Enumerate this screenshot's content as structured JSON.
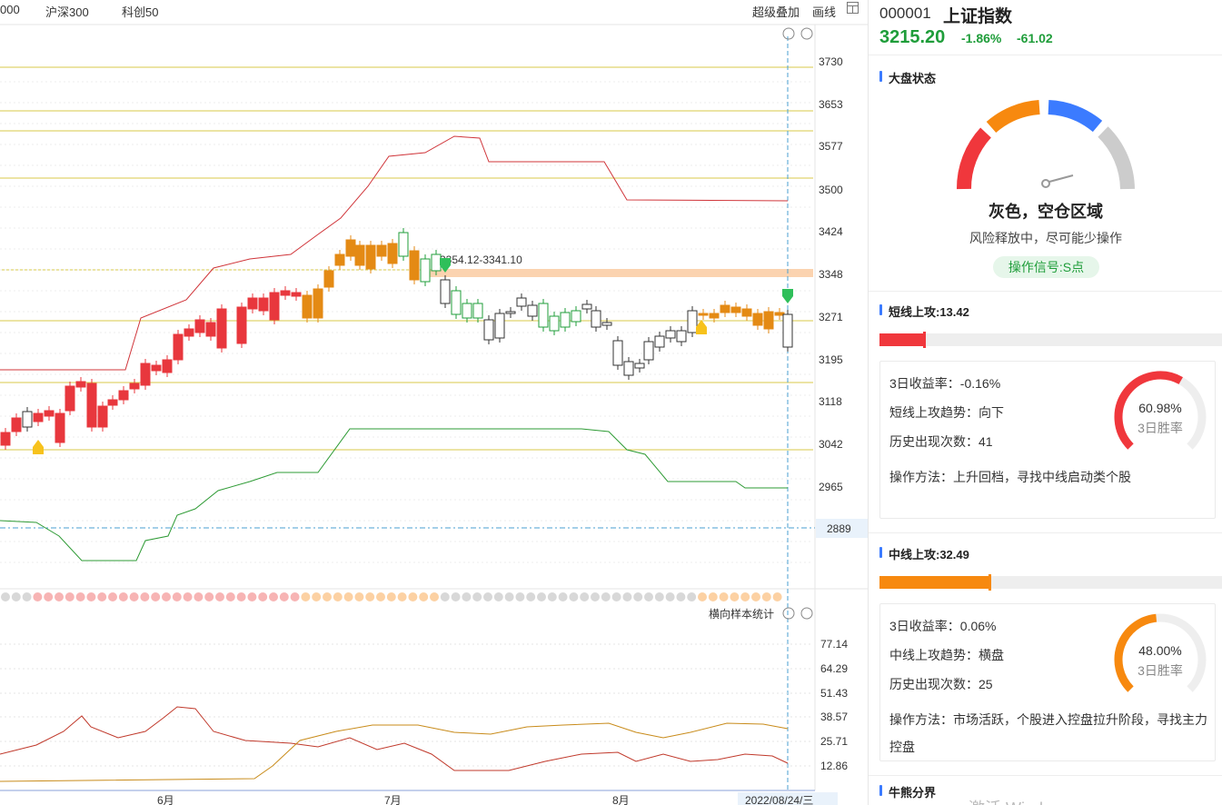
{
  "toolbar": {
    "tabs": [
      "000",
      "沪深300",
      "科创50"
    ],
    "right": [
      "超级叠加",
      "画线"
    ]
  },
  "colors": {
    "up": "#e8373d",
    "down": "#1f9d3a",
    "orange": "#e48a14",
    "grid": "#d9c94a"
  },
  "price_axis": [
    "3730",
    "3653",
    "3577",
    "3500",
    "3424",
    "3348",
    "3271",
    "3195",
    "3118",
    "3042",
    "2965"
  ],
  "current_line_label": "2889",
  "zone_label": "3354.12-3341.10",
  "sub_axis": [
    "77.14",
    "64.29",
    "51.43",
    "38.57",
    "25.71",
    "12.86"
  ],
  "sub_title": "横向样本统计",
  "x_axis": [
    "6月",
    "7月",
    "8月"
  ],
  "x_cursor": "2022/08/24/三",
  "stock": {
    "code": "000001",
    "name": "上证指数",
    "price": "3215.20",
    "pct": "-1.86%",
    "chg": "-61.02"
  },
  "market": {
    "title": "大盘状态",
    "state": "灰色，空仓区域",
    "desc": "风险释放中，尽可能少操作",
    "signal": "操作信号:S点"
  },
  "short": {
    "title": "短线上攻:13.42",
    "level": 0.134,
    "ret": "3日收益率：-0.16%",
    "trend": "短线上攻趋势：向下",
    "count": "历史出现次数：41",
    "method": "操作方法：上升回档，寻找中线启动类个股",
    "winrate": "60.98%",
    "winrate_value": 0.6098,
    "winrate_label": "3日胜率",
    "color": "#f0373c"
  },
  "mid": {
    "title": "中线上攻:32.49",
    "level": 0.325,
    "ret": "3日收益率：0.06%",
    "trend": "中线上攻趋势：横盘",
    "count": "历史出现次数：25",
    "method": "操作方法：市场活跃，个股进入控盘拉升阶段，寻找主力控盘",
    "winrate": "48.00%",
    "winrate_value": 0.48,
    "winrate_label": "3日胜率",
    "color": "#f7890f"
  },
  "bull": {
    "title": "牛熊分界"
  },
  "watermark": "激活 Windows"
}
